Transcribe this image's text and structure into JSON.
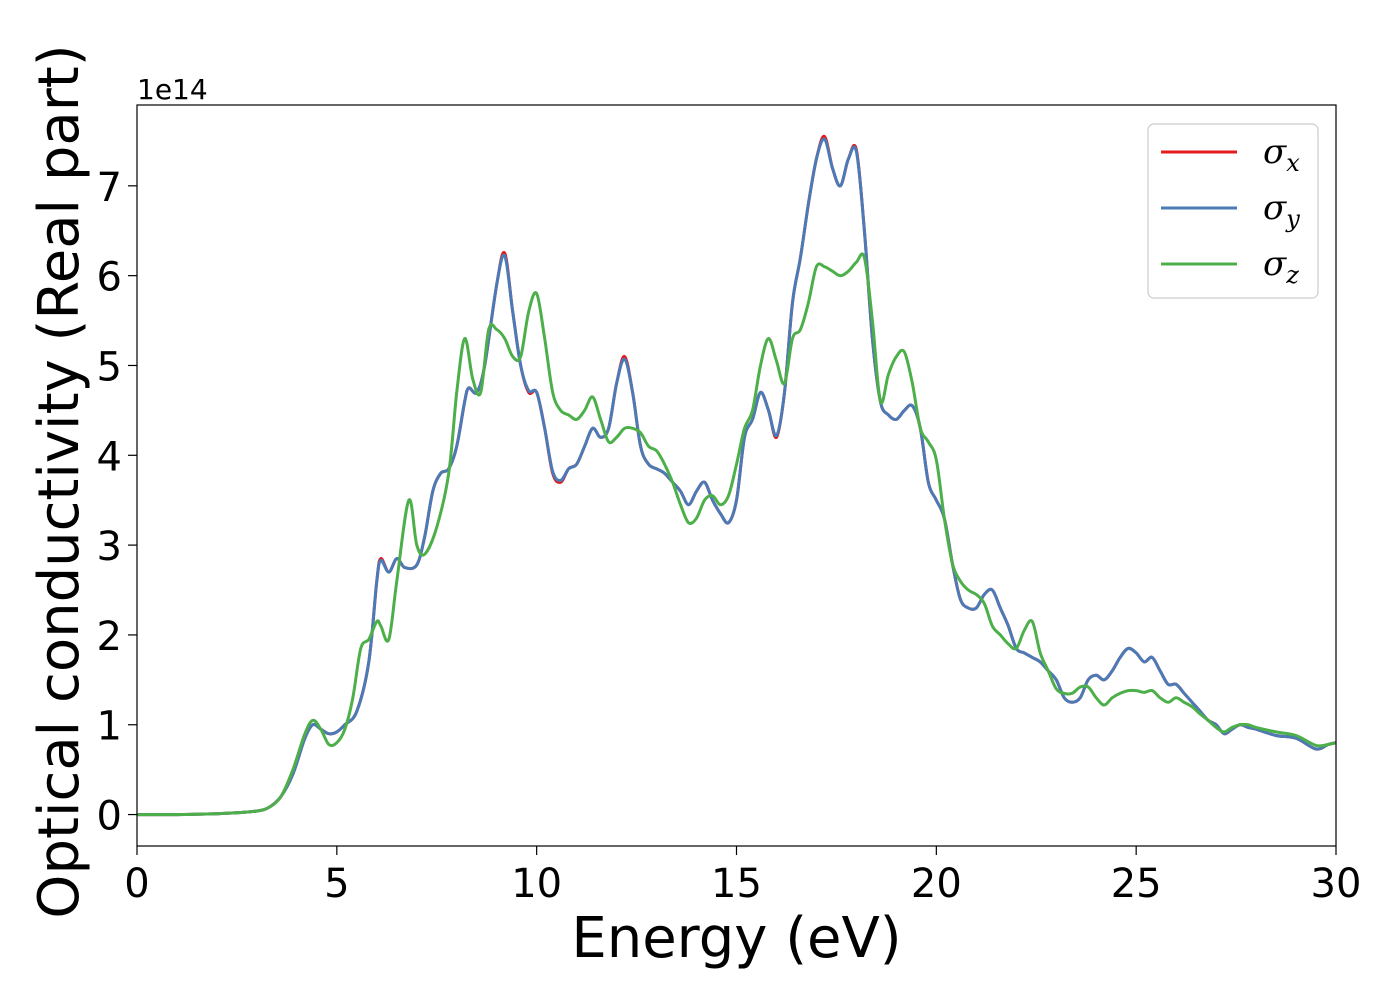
{
  "chart_data": {
    "type": "line",
    "title": "",
    "xlabel": "Energy (eV)",
    "ylabel": "Optical conductivity (Real part)",
    "y_offset_label": "1e14",
    "xlim": [
      0,
      30
    ],
    "ylim": [
      -0.35,
      7.9
    ],
    "x_ticks": [
      0,
      5,
      10,
      15,
      20,
      25,
      30
    ],
    "y_ticks": [
      0,
      1,
      2,
      3,
      4,
      5,
      6,
      7
    ],
    "grid": false,
    "legend_position": "top-right",
    "series": [
      {
        "name": "σx",
        "legend_symbol": "σ",
        "legend_subscript": "x",
        "color": "#e41a1c",
        "x": [
          0,
          1,
          2,
          2.5,
          3,
          3.3,
          3.6,
          3.9,
          4.2,
          4.4,
          4.6,
          4.8,
          5.0,
          5.2,
          5.5,
          5.8,
          6.0,
          6.1,
          6.3,
          6.5,
          6.7,
          7.0,
          7.2,
          7.4,
          7.6,
          7.8,
          8.0,
          8.2,
          8.3,
          8.5,
          8.7,
          9.0,
          9.2,
          9.4,
          9.6,
          9.8,
          10.0,
          10.2,
          10.4,
          10.6,
          10.8,
          11.0,
          11.2,
          11.4,
          11.6,
          11.8,
          12.0,
          12.2,
          12.4,
          12.6,
          12.8,
          13.0,
          13.2,
          13.4,
          13.6,
          13.8,
          14.0,
          14.2,
          14.4,
          14.6,
          14.8,
          15.0,
          15.2,
          15.4,
          15.6,
          15.8,
          16.0,
          16.2,
          16.4,
          16.6,
          16.8,
          17.0,
          17.2,
          17.4,
          17.6,
          17.8,
          18.0,
          18.2,
          18.4,
          18.6,
          18.8,
          19.0,
          19.2,
          19.4,
          19.6,
          19.8,
          20.0,
          20.2,
          20.4,
          20.6,
          20.8,
          21.0,
          21.2,
          21.4,
          21.6,
          21.8,
          22.0,
          22.2,
          22.4,
          22.6,
          22.8,
          23.0,
          23.2,
          23.4,
          23.6,
          23.8,
          24.0,
          24.2,
          24.4,
          24.6,
          24.8,
          25.0,
          25.2,
          25.4,
          25.6,
          25.8,
          26.0,
          26.2,
          26.4,
          26.6,
          26.8,
          27.0,
          27.2,
          27.4,
          27.6,
          27.8,
          28.0,
          28.5,
          29.0,
          29.5,
          29.8,
          30.0
        ],
        "y": [
          0,
          0,
          0.01,
          0.02,
          0.04,
          0.08,
          0.2,
          0.45,
          0.85,
          1.0,
          0.95,
          0.9,
          0.92,
          1.0,
          1.15,
          1.7,
          2.6,
          2.85,
          2.7,
          2.85,
          2.75,
          2.78,
          3.1,
          3.6,
          3.8,
          3.85,
          4.1,
          4.6,
          4.75,
          4.7,
          5.0,
          5.9,
          6.25,
          5.6,
          5.0,
          4.7,
          4.7,
          4.3,
          3.8,
          3.7,
          3.85,
          3.9,
          4.1,
          4.3,
          4.2,
          4.3,
          4.8,
          5.1,
          4.7,
          4.1,
          3.9,
          3.85,
          3.8,
          3.7,
          3.6,
          3.45,
          3.6,
          3.7,
          3.5,
          3.35,
          3.25,
          3.5,
          4.2,
          4.4,
          4.7,
          4.5,
          4.2,
          4.7,
          5.7,
          6.2,
          6.8,
          7.3,
          7.55,
          7.2,
          7.0,
          7.3,
          7.4,
          6.5,
          5.3,
          4.6,
          4.45,
          4.4,
          4.5,
          4.55,
          4.3,
          3.7,
          3.5,
          3.3,
          2.8,
          2.4,
          2.3,
          2.3,
          2.45,
          2.5,
          2.3,
          2.1,
          1.85,
          1.8,
          1.75,
          1.7,
          1.6,
          1.5,
          1.3,
          1.25,
          1.3,
          1.5,
          1.55,
          1.5,
          1.6,
          1.75,
          1.85,
          1.8,
          1.7,
          1.75,
          1.6,
          1.45,
          1.45,
          1.35,
          1.25,
          1.15,
          1.05,
          1.0,
          0.9,
          0.95,
          1.0,
          0.97,
          0.95,
          0.88,
          0.85,
          0.73,
          0.78,
          0.8
        ]
      },
      {
        "name": "σy",
        "legend_symbol": "σ",
        "legend_subscript": "y",
        "color": "#4a7bb7",
        "x": [
          0,
          1,
          2,
          2.5,
          3,
          3.3,
          3.6,
          3.9,
          4.2,
          4.4,
          4.6,
          4.8,
          5.0,
          5.2,
          5.5,
          5.8,
          6.0,
          6.1,
          6.3,
          6.5,
          6.7,
          7.0,
          7.2,
          7.4,
          7.6,
          7.8,
          8.0,
          8.2,
          8.3,
          8.5,
          8.7,
          9.0,
          9.2,
          9.4,
          9.6,
          9.8,
          10.0,
          10.2,
          10.4,
          10.6,
          10.8,
          11.0,
          11.2,
          11.4,
          11.6,
          11.8,
          12.0,
          12.2,
          12.4,
          12.6,
          12.8,
          13.0,
          13.2,
          13.4,
          13.6,
          13.8,
          14.0,
          14.2,
          14.4,
          14.6,
          14.8,
          15.0,
          15.2,
          15.4,
          15.6,
          15.8,
          16.0,
          16.2,
          16.4,
          16.6,
          16.8,
          17.0,
          17.2,
          17.4,
          17.6,
          17.8,
          18.0,
          18.2,
          18.4,
          18.6,
          18.8,
          19.0,
          19.2,
          19.4,
          19.6,
          19.8,
          20.0,
          20.2,
          20.4,
          20.6,
          20.8,
          21.0,
          21.2,
          21.4,
          21.6,
          21.8,
          22.0,
          22.2,
          22.4,
          22.6,
          22.8,
          23.0,
          23.2,
          23.4,
          23.6,
          23.8,
          24.0,
          24.2,
          24.4,
          24.6,
          24.8,
          25.0,
          25.2,
          25.4,
          25.6,
          25.8,
          26.0,
          26.2,
          26.4,
          26.6,
          26.8,
          27.0,
          27.2,
          27.4,
          27.6,
          27.8,
          28.0,
          28.5,
          29.0,
          29.5,
          29.8,
          30.0
        ],
        "y": [
          0,
          0,
          0.01,
          0.02,
          0.04,
          0.08,
          0.2,
          0.45,
          0.85,
          1.0,
          0.95,
          0.9,
          0.92,
          1.0,
          1.15,
          1.7,
          2.6,
          2.83,
          2.7,
          2.85,
          2.75,
          2.78,
          3.1,
          3.6,
          3.8,
          3.85,
          4.1,
          4.6,
          4.75,
          4.7,
          5.0,
          5.9,
          6.22,
          5.6,
          5.0,
          4.72,
          4.7,
          4.3,
          3.82,
          3.72,
          3.85,
          3.9,
          4.1,
          4.3,
          4.2,
          4.3,
          4.8,
          5.07,
          4.7,
          4.1,
          3.9,
          3.85,
          3.8,
          3.7,
          3.6,
          3.45,
          3.6,
          3.7,
          3.5,
          3.35,
          3.25,
          3.5,
          4.2,
          4.4,
          4.7,
          4.5,
          4.22,
          4.7,
          5.7,
          6.2,
          6.8,
          7.3,
          7.52,
          7.2,
          7.0,
          7.3,
          7.38,
          6.5,
          5.3,
          4.6,
          4.45,
          4.4,
          4.5,
          4.55,
          4.3,
          3.7,
          3.5,
          3.3,
          2.8,
          2.4,
          2.3,
          2.3,
          2.45,
          2.5,
          2.3,
          2.1,
          1.85,
          1.8,
          1.75,
          1.7,
          1.6,
          1.5,
          1.3,
          1.25,
          1.3,
          1.5,
          1.55,
          1.5,
          1.6,
          1.75,
          1.85,
          1.8,
          1.7,
          1.75,
          1.6,
          1.45,
          1.45,
          1.35,
          1.25,
          1.15,
          1.05,
          1.0,
          0.9,
          0.95,
          1.0,
          0.97,
          0.95,
          0.88,
          0.85,
          0.73,
          0.78,
          0.8
        ]
      },
      {
        "name": "σz",
        "legend_symbol": "σ",
        "legend_subscript": "z",
        "color": "#4daf4a",
        "x": [
          0,
          1,
          2,
          2.5,
          3,
          3.3,
          3.6,
          3.9,
          4.2,
          4.4,
          4.6,
          4.8,
          5.0,
          5.2,
          5.4,
          5.6,
          5.8,
          6.0,
          6.1,
          6.3,
          6.5,
          6.8,
          7.0,
          7.2,
          7.5,
          7.8,
          8.0,
          8.2,
          8.4,
          8.6,
          8.8,
          9.0,
          9.2,
          9.4,
          9.6,
          9.8,
          10.0,
          10.2,
          10.4,
          10.6,
          10.8,
          11.0,
          11.2,
          11.4,
          11.6,
          11.8,
          12.0,
          12.2,
          12.4,
          12.6,
          12.8,
          13.0,
          13.2,
          13.4,
          13.6,
          13.8,
          14.0,
          14.2,
          14.4,
          14.6,
          14.8,
          15.0,
          15.2,
          15.4,
          15.6,
          15.8,
          16.0,
          16.2,
          16.4,
          16.6,
          16.8,
          17.0,
          17.2,
          17.4,
          17.6,
          17.8,
          18.0,
          18.2,
          18.4,
          18.6,
          18.8,
          19.0,
          19.2,
          19.4,
          19.6,
          19.8,
          20.0,
          20.2,
          20.4,
          20.6,
          20.8,
          21.0,
          21.2,
          21.4,
          21.6,
          21.8,
          22.0,
          22.2,
          22.4,
          22.6,
          22.8,
          23.0,
          23.2,
          23.4,
          23.6,
          23.8,
          24.0,
          24.2,
          24.4,
          24.6,
          24.8,
          25.0,
          25.2,
          25.4,
          25.6,
          25.8,
          26.0,
          26.2,
          26.4,
          26.6,
          26.8,
          27.0,
          27.2,
          27.4,
          27.6,
          27.8,
          28.0,
          28.5,
          29.0,
          29.5,
          29.8,
          30.0
        ],
        "y": [
          0,
          0,
          0.01,
          0.02,
          0.04,
          0.08,
          0.2,
          0.5,
          0.9,
          1.05,
          0.95,
          0.78,
          0.8,
          0.95,
          1.3,
          1.85,
          1.95,
          2.15,
          2.1,
          1.95,
          2.6,
          3.5,
          3.0,
          2.9,
          3.2,
          3.8,
          4.7,
          5.3,
          4.85,
          4.7,
          5.4,
          5.4,
          5.3,
          5.1,
          5.1,
          5.6,
          5.8,
          5.3,
          4.7,
          4.5,
          4.45,
          4.4,
          4.5,
          4.65,
          4.4,
          4.15,
          4.2,
          4.3,
          4.3,
          4.25,
          4.1,
          4.05,
          3.9,
          3.7,
          3.45,
          3.25,
          3.3,
          3.5,
          3.55,
          3.45,
          3.55,
          3.9,
          4.3,
          4.5,
          5.0,
          5.3,
          5.05,
          4.8,
          5.3,
          5.4,
          5.7,
          6.1,
          6.1,
          6.05,
          6.0,
          6.05,
          6.15,
          6.2,
          5.5,
          4.6,
          4.9,
          5.1,
          5.15,
          4.8,
          4.3,
          4.15,
          3.95,
          3.3,
          2.8,
          2.6,
          2.5,
          2.45,
          2.35,
          2.1,
          2.0,
          1.9,
          1.85,
          2.05,
          2.15,
          1.8,
          1.6,
          1.4,
          1.35,
          1.35,
          1.42,
          1.42,
          1.3,
          1.22,
          1.3,
          1.35,
          1.38,
          1.38,
          1.36,
          1.38,
          1.3,
          1.25,
          1.3,
          1.25,
          1.2,
          1.12,
          1.05,
          0.97,
          0.92,
          0.97,
          1.0,
          1.0,
          0.97,
          0.92,
          0.88,
          0.77,
          0.78,
          0.8
        ]
      }
    ]
  }
}
